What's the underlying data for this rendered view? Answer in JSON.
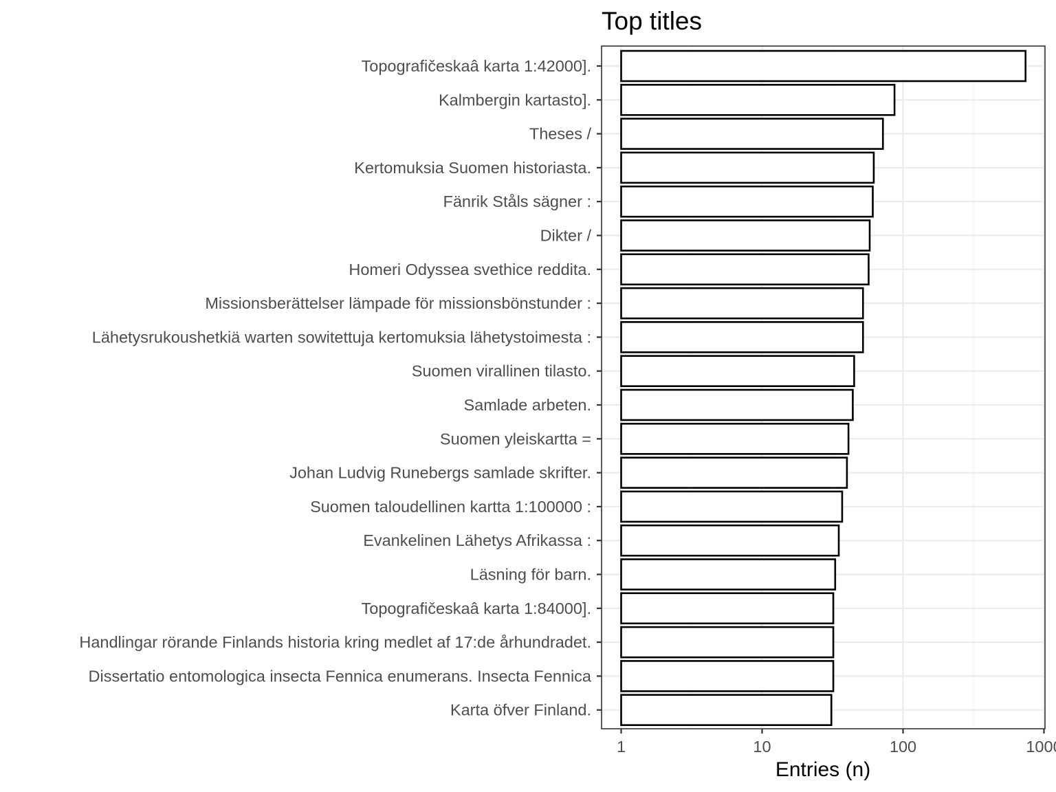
{
  "chart_data": {
    "type": "bar",
    "orientation": "horizontal",
    "title": "Top titles",
    "xlabel": "Entries (n)",
    "ylabel": "",
    "x_scale": "log10",
    "xlim": [
      0.87,
      1000
    ],
    "x_ticks": [
      1,
      10,
      100,
      1000
    ],
    "x_tick_labels": [
      "1",
      "10",
      "100",
      "1000"
    ],
    "grid": true,
    "legend": "none",
    "categories": [
      "Topografičeskaâ karta 1:42000].",
      "Kalmbergin kartasto].",
      "Theses /",
      "Kertomuksia Suomen historiasta.",
      "Fänrik Ståls sägner :",
      "Dikter /",
      "Homeri Odyssea svethice reddita.",
      "Missionsberättelser lämpade för missionsbönstunder :",
      "Lähetysrukoushetkiä warten sowitettuja kertomuksia lähetystoimesta :",
      "Suomen virallinen tilasto.",
      "Samlade arbeten.",
      "Suomen yleiskartta =",
      "Johan Ludvig Runebergs samlade skrifter.",
      "Suomen taloudellinen kartta 1:100000 :",
      "Evankelinen Lähetys Afrikassa :",
      "Läsning för barn.",
      "Topografičeskaâ karta 1:84000].",
      "Handlingar rörande Finlands historia kring medlet af 17:de århundradet.",
      "Dissertatio entomologica insecta Fennica enumerans. Insecta Fennica",
      "Karta öfver Finland."
    ],
    "values": [
      740,
      87,
      72,
      62,
      61,
      58,
      57,
      52,
      52,
      45,
      44,
      41,
      40,
      37,
      35,
      33,
      32,
      32,
      32,
      31
    ],
    "colors": {
      "bar_fill": "#ffffff",
      "bar_stroke": "#000000",
      "grid": "#ebebeb",
      "label": "#4d4d4d"
    }
  }
}
